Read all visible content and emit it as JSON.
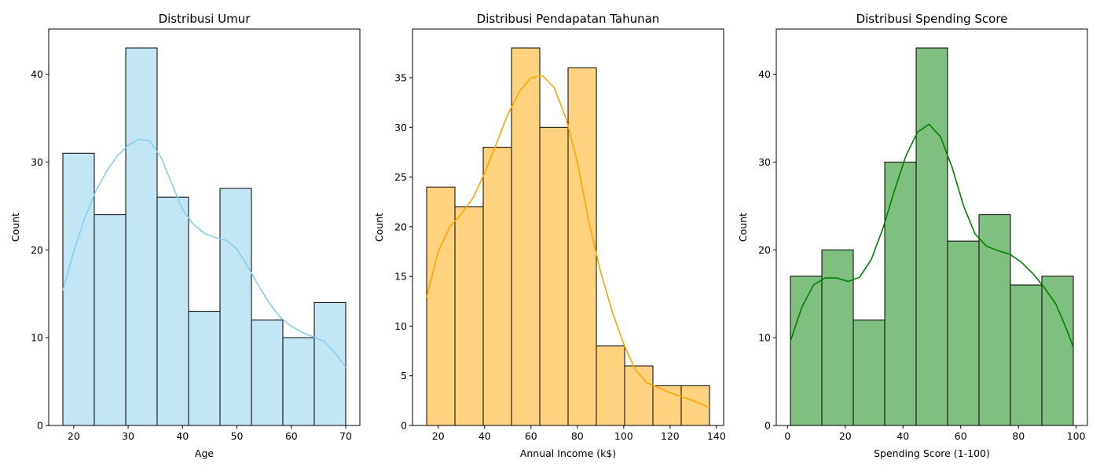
{
  "chart_data": [
    {
      "type": "histogram",
      "title": "Distribusi Umur",
      "xlabel": "Age",
      "ylabel": "Count",
      "bin_edges": [
        18,
        23.78,
        29.56,
        35.33,
        41.11,
        46.89,
        52.67,
        58.44,
        64.22,
        70
      ],
      "counts": [
        31,
        24,
        43,
        26,
        13,
        27,
        12,
        10,
        14
      ],
      "xlim": [
        15.4,
        72.6
      ],
      "ylim": [
        0,
        45.15
      ],
      "xticks": [
        20,
        30,
        40,
        50,
        60,
        70
      ],
      "yticks": [
        0,
        10,
        20,
        30,
        40
      ],
      "fill_color": "#87ceeb",
      "kde_color": "#87ceeb",
      "kde": {
        "x": [
          18,
          20,
          22,
          24,
          26,
          28,
          30,
          32,
          34,
          36,
          38,
          40,
          42,
          44,
          46,
          48,
          50,
          52,
          54,
          56,
          58,
          60,
          62,
          64,
          66,
          68,
          70
        ],
        "y": [
          15.4,
          19.8,
          23.6,
          26.6,
          28.9,
          30.7,
          31.9,
          32.6,
          32.4,
          30.6,
          27.6,
          24.6,
          22.9,
          21.9,
          21.4,
          21.1,
          20.1,
          18.1,
          15.9,
          13.9,
          12.3,
          11.3,
          10.6,
          10.1,
          9.6,
          8.3,
          6.6
        ]
      }
    },
    {
      "type": "histogram",
      "title": "Distribusi Pendapatan Tahunan",
      "xlabel": "Annual Income (k$)",
      "ylabel": "Count",
      "bin_edges": [
        15,
        27.2,
        39.4,
        51.6,
        63.8,
        76,
        88.2,
        100.4,
        112.6,
        124.8,
        137
      ],
      "counts": [
        24,
        22,
        28,
        38,
        30,
        36,
        8,
        6,
        4,
        4
      ],
      "xlim": [
        8.9,
        143.1
      ],
      "ylim": [
        0,
        39.9
      ],
      "xticks": [
        20,
        40,
        60,
        80,
        100,
        120,
        140
      ],
      "yticks": [
        0,
        5,
        10,
        15,
        20,
        25,
        30,
        35
      ],
      "fill_color": "#ffa500",
      "kde_color": "#ffa500",
      "kde": {
        "x": [
          15,
          20,
          25,
          30,
          35,
          40,
          45,
          50,
          55,
          60,
          65,
          70,
          75,
          80,
          85,
          90,
          95,
          100,
          105,
          110,
          115,
          120,
          125,
          130,
          137
        ],
        "y": [
          12.9,
          17.5,
          20.0,
          21.3,
          22.9,
          25.4,
          28.3,
          31.3,
          33.6,
          35.0,
          35.2,
          34.0,
          31.0,
          26.5,
          20.5,
          15.5,
          11.5,
          8.2,
          5.6,
          4.3,
          3.8,
          3.3,
          2.9,
          2.5,
          1.8
        ]
      }
    },
    {
      "type": "histogram",
      "title": "Distribusi Spending Score",
      "xlabel": "Spending Score (1-100)",
      "ylabel": "Count",
      "bin_edges": [
        1,
        11.89,
        22.78,
        33.67,
        44.56,
        55.44,
        66.33,
        77.22,
        88.11,
        99
      ],
      "counts": [
        17,
        20,
        12,
        30,
        43,
        21,
        24,
        16,
        17
      ],
      "xlim": [
        -3.9,
        103.9
      ],
      "ylim": [
        0,
        45.15
      ],
      "xticks": [
        0,
        20,
        40,
        60,
        80,
        100
      ],
      "yticks": [
        0,
        10,
        20,
        30,
        40
      ],
      "fill_color": "#008000",
      "kde_color": "#008000",
      "kde": {
        "x": [
          1,
          5,
          9,
          13,
          17,
          21,
          25,
          29,
          33,
          37,
          41,
          45,
          49,
          53,
          57,
          61,
          65,
          69,
          73,
          77,
          81,
          85,
          89,
          93,
          97,
          99
        ],
        "y": [
          9.6,
          13.5,
          16.0,
          16.8,
          16.8,
          16.4,
          16.9,
          18.9,
          22.4,
          26.7,
          30.7,
          33.4,
          34.3,
          32.9,
          29.4,
          25.0,
          21.8,
          20.4,
          19.9,
          19.5,
          18.6,
          17.3,
          15.7,
          13.8,
          10.7,
          8.9
        ]
      }
    }
  ]
}
